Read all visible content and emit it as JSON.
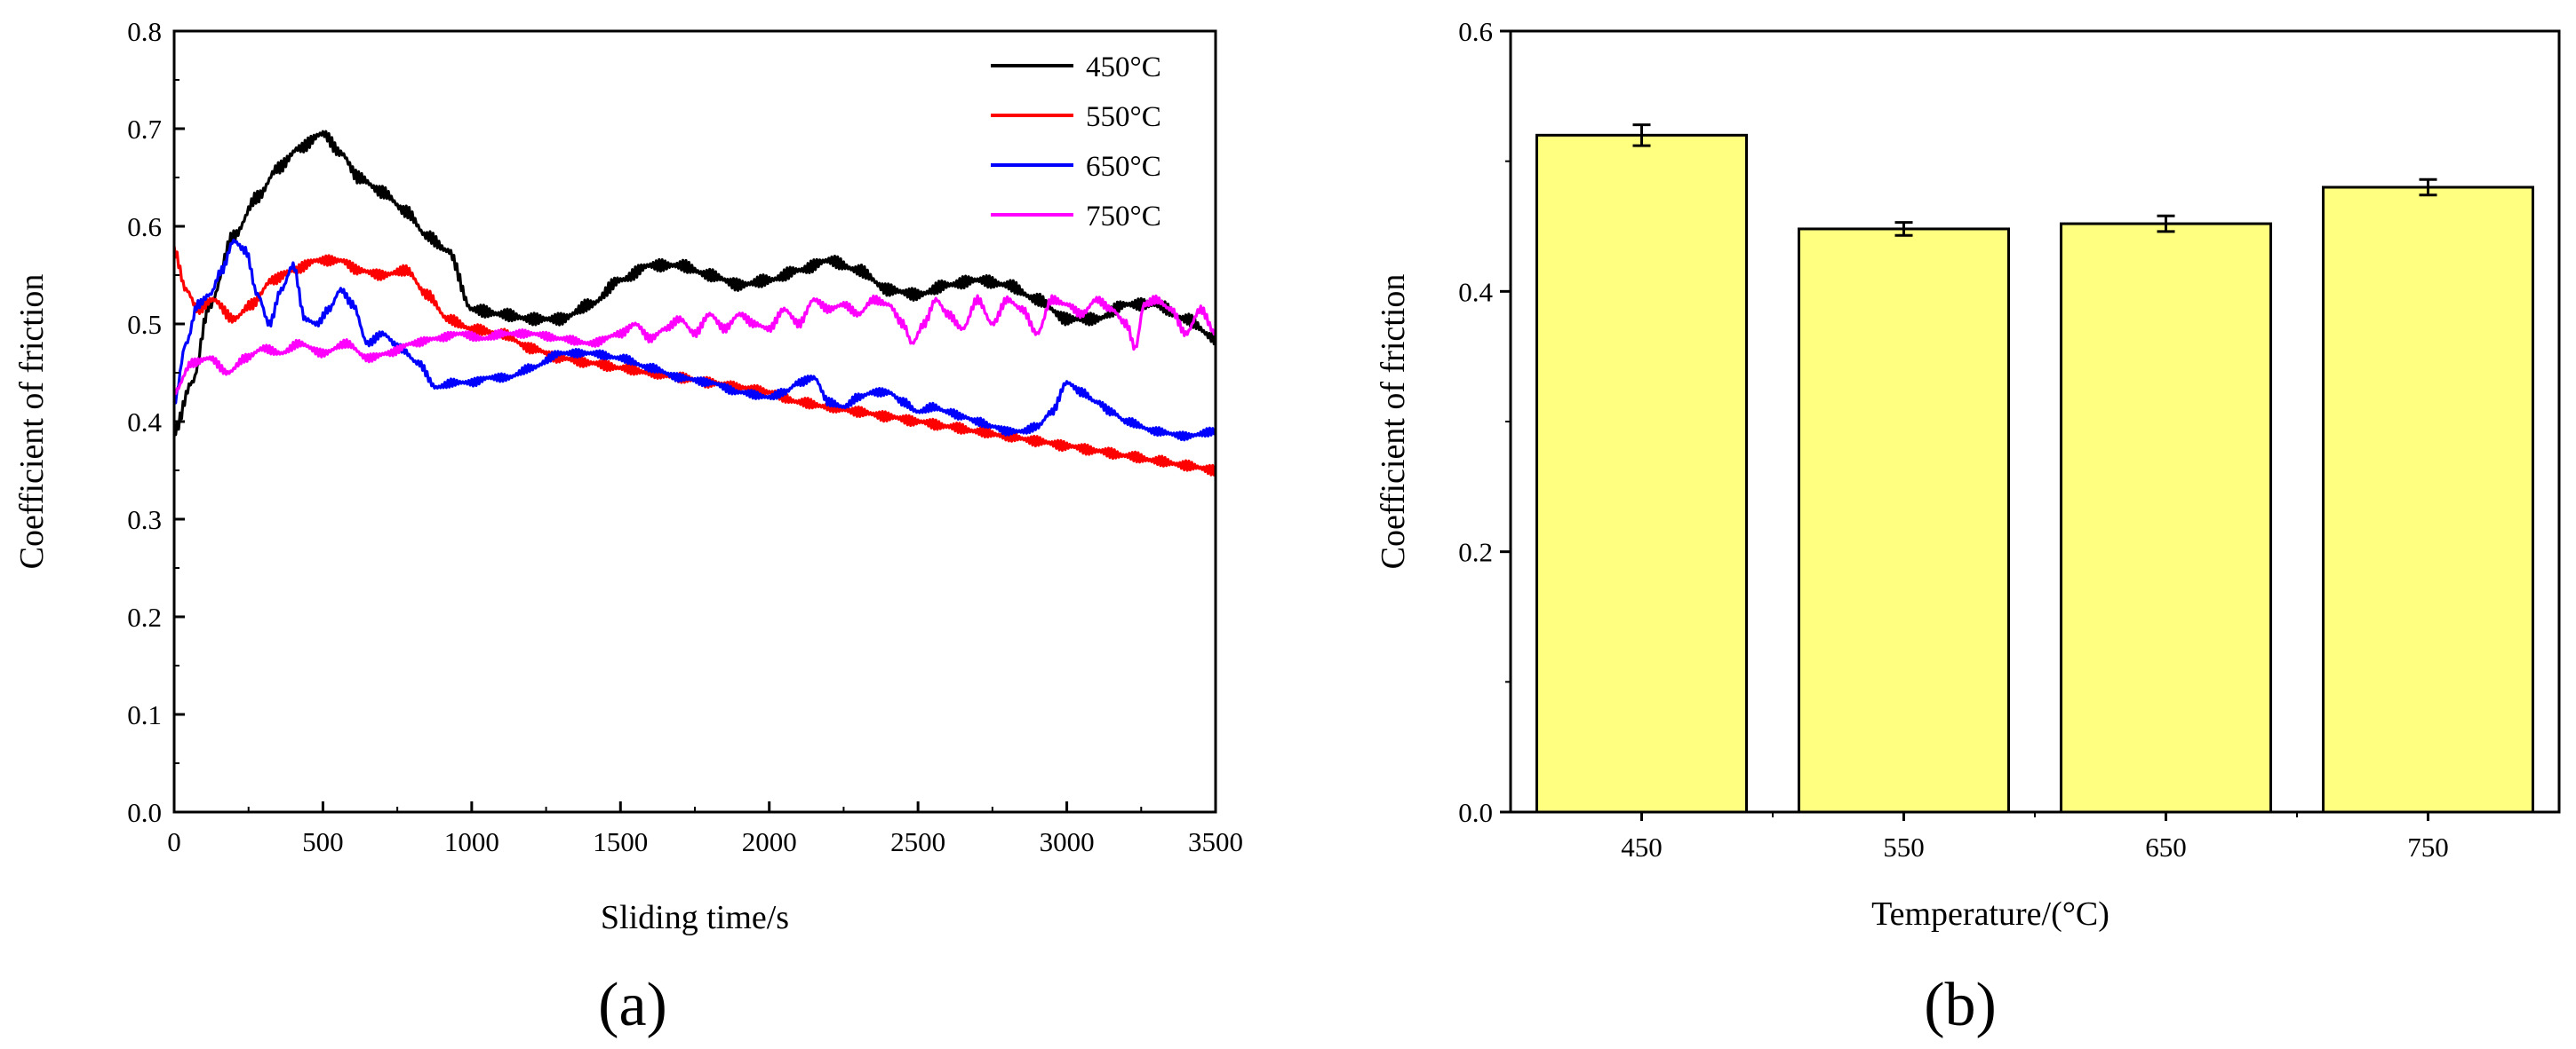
{
  "chart_data": [
    {
      "type": "line",
      "xlabel": "Sliding time/s",
      "ylabel": "Coefficient of friction",
      "xlim": [
        0,
        3500
      ],
      "ylim": [
        0.0,
        0.8
      ],
      "x_ticks": [
        0,
        500,
        1000,
        1500,
        2000,
        2500,
        3000,
        3500
      ],
      "x_tick_labels": [
        "0",
        "500",
        "1000",
        "1500",
        "2000",
        "2500",
        "3000",
        "3500"
      ],
      "y_ticks": [
        0.0,
        0.1,
        0.2,
        0.3,
        0.4,
        0.5,
        0.6,
        0.7,
        0.8
      ],
      "y_tick_labels": [
        "0.0",
        "0.1",
        "0.2",
        "0.3",
        "0.4",
        "0.5",
        "0.6",
        "0.7",
        "0.8"
      ],
      "legend_position": "top-right",
      "panel_label": "(a)",
      "series": [
        {
          "name": "450°C",
          "color": "#000000",
          "x": [
            0,
            60,
            120,
            200,
            280,
            350,
            420,
            500,
            560,
            620,
            700,
            780,
            850,
            920,
            1000,
            1100,
            1200,
            1300,
            1400,
            1500,
            1600,
            1700,
            1800,
            1900,
            2000,
            2100,
            2200,
            2300,
            2400,
            2500,
            2600,
            2700,
            2800,
            2900,
            3000,
            3100,
            3200,
            3300,
            3400,
            3500
          ],
          "y": [
            0.39,
            0.44,
            0.52,
            0.59,
            0.63,
            0.66,
            0.68,
            0.695,
            0.675,
            0.65,
            0.635,
            0.615,
            0.59,
            0.575,
            0.515,
            0.51,
            0.505,
            0.505,
            0.52,
            0.545,
            0.56,
            0.56,
            0.55,
            0.54,
            0.545,
            0.555,
            0.565,
            0.555,
            0.535,
            0.53,
            0.54,
            0.545,
            0.54,
            0.525,
            0.505,
            0.505,
            0.52,
            0.52,
            0.505,
            0.485
          ],
          "noise": 0.006
        },
        {
          "name": "550°C",
          "color": "#ff0000",
          "x": [
            0,
            40,
            80,
            130,
            200,
            260,
            330,
            400,
            480,
            560,
            620,
            700,
            780,
            850,
            920,
            1000,
            1100,
            1200,
            1300,
            1400,
            1500,
            1600,
            1700,
            1800,
            1900,
            2000,
            2100,
            2200,
            2300,
            2400,
            2500,
            2600,
            2700,
            2800,
            2900,
            3000,
            3100,
            3200,
            3300,
            3400,
            3500
          ],
          "y": [
            0.575,
            0.535,
            0.515,
            0.525,
            0.505,
            0.52,
            0.545,
            0.555,
            0.565,
            0.565,
            0.555,
            0.55,
            0.555,
            0.53,
            0.505,
            0.495,
            0.49,
            0.475,
            0.465,
            0.46,
            0.455,
            0.45,
            0.445,
            0.44,
            0.435,
            0.43,
            0.42,
            0.415,
            0.41,
            0.405,
            0.4,
            0.395,
            0.39,
            0.385,
            0.38,
            0.375,
            0.37,
            0.365,
            0.36,
            0.355,
            0.35
          ],
          "noise": 0.005
        },
        {
          "name": "650°C",
          "color": "#0000ff",
          "x": [
            0,
            40,
            80,
            120,
            160,
            200,
            240,
            280,
            320,
            360,
            400,
            440,
            480,
            520,
            560,
            600,
            650,
            700,
            760,
            820,
            880,
            940,
            1000,
            1060,
            1120,
            1200,
            1300,
            1400,
            1500,
            1600,
            1700,
            1800,
            1900,
            2000,
            2050,
            2100,
            2150,
            2200,
            2250,
            2300,
            2350,
            2400,
            2450,
            2500,
            2550,
            2600,
            2650,
            2700,
            2750,
            2800,
            2850,
            2900,
            2950,
            3000,
            3050,
            3100,
            3150,
            3200,
            3300,
            3400,
            3500
          ],
          "y": [
            0.42,
            0.48,
            0.52,
            0.53,
            0.555,
            0.585,
            0.575,
            0.53,
            0.5,
            0.535,
            0.56,
            0.505,
            0.5,
            0.515,
            0.535,
            0.52,
            0.48,
            0.49,
            0.475,
            0.46,
            0.435,
            0.44,
            0.44,
            0.445,
            0.445,
            0.455,
            0.47,
            0.47,
            0.465,
            0.455,
            0.445,
            0.44,
            0.43,
            0.425,
            0.43,
            0.44,
            0.445,
            0.42,
            0.415,
            0.425,
            0.43,
            0.43,
            0.42,
            0.41,
            0.415,
            0.41,
            0.405,
            0.4,
            0.395,
            0.39,
            0.39,
            0.395,
            0.41,
            0.44,
            0.43,
            0.42,
            0.41,
            0.4,
            0.39,
            0.385,
            0.39
          ],
          "noise": 0.004
        },
        {
          "name": "750°C",
          "color": "#ff00ff",
          "x": [
            0,
            60,
            120,
            180,
            240,
            300,
            360,
            420,
            500,
            580,
            650,
            720,
            800,
            880,
            960,
            1040,
            1100,
            1200,
            1300,
            1400,
            1500,
            1550,
            1600,
            1650,
            1700,
            1750,
            1800,
            1850,
            1900,
            1950,
            2000,
            2050,
            2100,
            2150,
            2200,
            2250,
            2300,
            2350,
            2400,
            2450,
            2480,
            2520,
            2560,
            2600,
            2650,
            2700,
            2750,
            2800,
            2850,
            2900,
            2950,
            3000,
            3050,
            3100,
            3150,
            3200,
            3230,
            3260,
            3300,
            3350,
            3400,
            3450,
            3500
          ],
          "y": [
            0.43,
            0.46,
            0.465,
            0.45,
            0.465,
            0.475,
            0.47,
            0.48,
            0.47,
            0.48,
            0.465,
            0.47,
            0.48,
            0.485,
            0.49,
            0.485,
            0.49,
            0.49,
            0.485,
            0.48,
            0.49,
            0.5,
            0.485,
            0.495,
            0.505,
            0.49,
            0.51,
            0.495,
            0.51,
            0.5,
            0.495,
            0.515,
            0.5,
            0.525,
            0.515,
            0.52,
            0.51,
            0.525,
            0.52,
            0.5,
            0.48,
            0.5,
            0.525,
            0.51,
            0.495,
            0.525,
            0.5,
            0.525,
            0.515,
            0.49,
            0.525,
            0.52,
            0.51,
            0.525,
            0.515,
            0.5,
            0.475,
            0.52,
            0.525,
            0.515,
            0.49,
            0.515,
            0.49
          ],
          "noise": 0.004
        }
      ]
    },
    {
      "type": "bar",
      "xlabel": "Temperature/(°C)",
      "ylabel": "Coefficient of friction",
      "ylim": [
        0.0,
        0.6
      ],
      "y_ticks": [
        0.0,
        0.2,
        0.4,
        0.6
      ],
      "y_tick_labels": [
        "0.0",
        "0.2",
        "0.4",
        "0.6"
      ],
      "categories": [
        "450",
        "550",
        "650",
        "750"
      ],
      "values": [
        0.52,
        0.448,
        0.452,
        0.48
      ],
      "errors": [
        0.008,
        0.005,
        0.006,
        0.006
      ],
      "bar_color": "#ffff80",
      "panel_label": "(b)"
    }
  ]
}
